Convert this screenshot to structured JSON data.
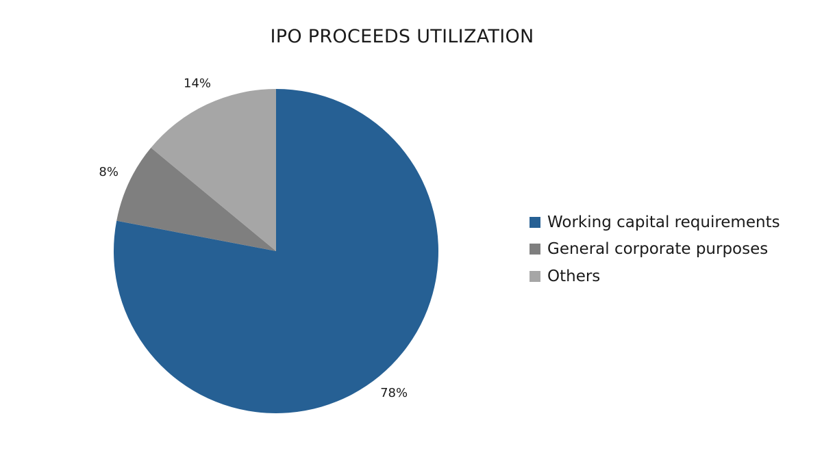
{
  "chart_data": {
    "type": "pie",
    "title": "IPO PROCEEDS UTILIZATION",
    "categories": [
      "Working capital requirements",
      "General corporate purposes",
      "Others"
    ],
    "values": [
      78,
      8,
      14
    ],
    "data_labels": [
      "78%",
      "8%",
      "14%"
    ],
    "colors": [
      "#266094",
      "#7f7f7f",
      "#a6a6a6"
    ],
    "legend_position": "right"
  }
}
